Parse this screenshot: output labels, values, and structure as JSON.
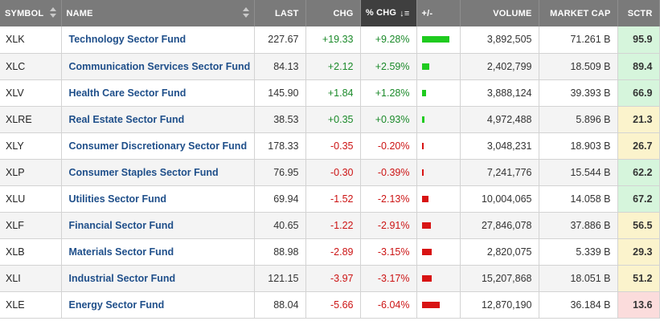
{
  "colors": {
    "positive": "#1b8a2a",
    "negative": "#cc1414",
    "bar_up": "#1fcb1f",
    "bar_down": "#d81414",
    "header_bg": "#7a7a7a",
    "header_active_bg": "#3f3f3f",
    "name_link": "#1f4f8a",
    "sctr_high": "#d6f5dc",
    "sctr_mid": "#fbf3cc",
    "sctr_low": "#fbdcdc"
  },
  "headers": {
    "symbol": "SYMBOL",
    "name": "NAME",
    "last": "LAST",
    "chg": "CHG",
    "pct_chg": "% CHG",
    "plus_minus": "+/-",
    "volume": "VOLUME",
    "market_cap": "MARKET CAP",
    "sctr": "SCTR"
  },
  "sort": {
    "column": "pct_chg",
    "direction": "descending",
    "icon": "sort-descending-icon"
  },
  "rows": [
    {
      "symbol": "XLK",
      "name": "Technology Sector Fund",
      "last": "227.67",
      "chg": "+19.33",
      "pct_chg": "+9.28%",
      "pct_value": 9.28,
      "volume": "3,892,505",
      "market_cap": "71.261 B",
      "sctr": "95.9",
      "sctr_level": "hi"
    },
    {
      "symbol": "XLC",
      "name": "Communication Services Sector Fund",
      "last": "84.13",
      "chg": "+2.12",
      "pct_chg": "+2.59%",
      "pct_value": 2.59,
      "volume": "2,402,799",
      "market_cap": "18.509 B",
      "sctr": "89.4",
      "sctr_level": "hi"
    },
    {
      "symbol": "XLV",
      "name": "Health Care Sector Fund",
      "last": "145.90",
      "chg": "+1.84",
      "pct_chg": "+1.28%",
      "pct_value": 1.28,
      "volume": "3,888,124",
      "market_cap": "39.393 B",
      "sctr": "66.9",
      "sctr_level": "hi"
    },
    {
      "symbol": "XLRE",
      "name": "Real Estate Sector Fund",
      "last": "38.53",
      "chg": "+0.35",
      "pct_chg": "+0.93%",
      "pct_value": 0.93,
      "volume": "4,972,488",
      "market_cap": "5.896 B",
      "sctr": "21.3",
      "sctr_level": "mid"
    },
    {
      "symbol": "XLY",
      "name": "Consumer Discretionary Sector Fund",
      "last": "178.33",
      "chg": "-0.35",
      "pct_chg": "-0.20%",
      "pct_value": -0.2,
      "volume": "3,048,231",
      "market_cap": "18.903 B",
      "sctr": "26.7",
      "sctr_level": "mid"
    },
    {
      "symbol": "XLP",
      "name": "Consumer Staples Sector Fund",
      "last": "76.95",
      "chg": "-0.30",
      "pct_chg": "-0.39%",
      "pct_value": -0.39,
      "volume": "7,241,776",
      "market_cap": "15.544 B",
      "sctr": "62.2",
      "sctr_level": "hi"
    },
    {
      "symbol": "XLU",
      "name": "Utilities Sector Fund",
      "last": "69.94",
      "chg": "-1.52",
      "pct_chg": "-2.13%",
      "pct_value": -2.13,
      "volume": "10,004,065",
      "market_cap": "14.058 B",
      "sctr": "67.2",
      "sctr_level": "hi"
    },
    {
      "symbol": "XLF",
      "name": "Financial Sector Fund",
      "last": "40.65",
      "chg": "-1.22",
      "pct_chg": "-2.91%",
      "pct_value": -2.91,
      "volume": "27,846,078",
      "market_cap": "37.886 B",
      "sctr": "56.5",
      "sctr_level": "mid"
    },
    {
      "symbol": "XLB",
      "name": "Materials Sector Fund",
      "last": "88.98",
      "chg": "-2.89",
      "pct_chg": "-3.15%",
      "pct_value": -3.15,
      "volume": "2,820,075",
      "market_cap": "5.339 B",
      "sctr": "29.3",
      "sctr_level": "mid"
    },
    {
      "symbol": "XLI",
      "name": "Industrial Sector Fund",
      "last": "121.15",
      "chg": "-3.97",
      "pct_chg": "-3.17%",
      "pct_value": -3.17,
      "volume": "15,207,868",
      "market_cap": "18.051 B",
      "sctr": "51.2",
      "sctr_level": "mid"
    },
    {
      "symbol": "XLE",
      "name": "Energy Sector Fund",
      "last": "88.04",
      "chg": "-5.66",
      "pct_chg": "-6.04%",
      "pct_value": -6.04,
      "volume": "12,870,190",
      "market_cap": "36.184 B",
      "sctr": "13.6",
      "sctr_level": "lo"
    }
  ]
}
